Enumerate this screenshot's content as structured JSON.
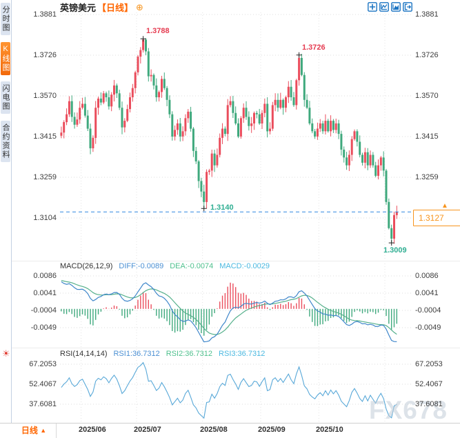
{
  "header": {
    "symbol": "英镑美元",
    "period_tag": "【日线】",
    "add_icon_glyph": "⊕"
  },
  "sidebar": {
    "items": [
      {
        "label": "分时图",
        "active": false
      },
      {
        "label": "K线图",
        "active": true
      },
      {
        "label": "闪电图",
        "active": false
      },
      {
        "label": "合约资料",
        "active": false
      }
    ]
  },
  "toolbar": {
    "icons": [
      "crosshair-icon",
      "line-chart-icon",
      "area-chart-icon",
      "exit-chart-icon"
    ]
  },
  "icons": {
    "dropdown_up": "▲",
    "sun": "☀",
    "price_arrow": "▲"
  },
  "colors": {
    "up": "#ea4d5c",
    "down": "#3fa97d",
    "diff_line": "#3e86ca",
    "dea_line": "#55b08b",
    "rsi_line": "#58a8d8",
    "dashed_line": "#2f86e0",
    "accent_orange": "#f7941d",
    "marker_high": "#e53b50",
    "marker_low": "#2fae92",
    "grid": "#dedede",
    "vgrid": "#e3e3e3"
  },
  "main_chart": {
    "left_axis": [
      "1.3881",
      "1.3726",
      "1.3570",
      "1.3415",
      "1.3259",
      "1.3104"
    ],
    "left_axis_values": [
      1.3881,
      1.3726,
      1.357,
      1.3415,
      1.3259,
      1.3104
    ],
    "right_axis": [
      "1.3881",
      "1.3726",
      "1.3570",
      "1.3415",
      "1.3259"
    ],
    "current_price": "1.3127",
    "current_price_value": 1.3127,
    "markers": [
      {
        "index": 31,
        "price": 1.3788,
        "label": "1.3788",
        "color": "#e53b50",
        "placement": "above"
      },
      {
        "index": 54,
        "price": 1.314,
        "label": "1.3140",
        "color": "#2fae92",
        "placement": "right"
      },
      {
        "index": 90,
        "price": 1.3726,
        "label": "1.3726",
        "color": "#e53b50",
        "placement": "above"
      },
      {
        "index": 125,
        "price": 1.3009,
        "label": "1.3009",
        "color": "#2fae92",
        "placement": "below"
      }
    ]
  },
  "macd": {
    "header": "MACD(26,12,9)",
    "diff_label": "DIFF:-0.0089",
    "dea_label": "DEA:-0.0074",
    "macd_label": "MACD:-0.0029",
    "axis": [
      "0.0086",
      "0.0041",
      "-0.0004",
      "-0.0049"
    ],
    "axis_values": [
      0.0086,
      0.0041,
      -0.0004,
      -0.0049
    ]
  },
  "rsi": {
    "header": "RSI(14,14,14)",
    "rsi1_label": "RSI1:36.7312",
    "rsi2_label": "RSI2:36.7312",
    "rsi3_label": "RSI3:36.7312",
    "axis": [
      "67.2053",
      "52.4067",
      "37.6081"
    ],
    "axis_values": [
      67.2053,
      52.4067,
      37.6081
    ]
  },
  "bottom_bar": {
    "period": "日线",
    "dates": [
      "2025/06",
      "2025/07",
      "2025/08",
      "2025/09",
      "2025/10"
    ]
  },
  "watermark": "FX678",
  "chart_data": {
    "type": "candlestick",
    "title": "英镑美元 日线 (GBP/USD daily)",
    "x_axis": {
      "labels": [
        "2025/06",
        "2025/07",
        "2025/08",
        "2025/09",
        "2025/10"
      ],
      "month_start_indices": [
        8,
        29,
        54,
        76,
        98,
        123
      ]
    },
    "y_axis": {
      "ticks": [
        1.3881,
        1.3726,
        1.357,
        1.3415,
        1.3259,
        1.3104
      ]
    },
    "key_points": {
      "high_jul": 1.3788,
      "low_aug": 1.314,
      "high_sep": 1.3726,
      "low_nov": 1.3009,
      "last": 1.3127
    },
    "closes": [
      1.343,
      1.347,
      1.35,
      1.355,
      1.349,
      1.346,
      1.348,
      1.3525,
      1.354,
      1.3495,
      1.3445,
      1.337,
      1.341,
      1.3525,
      1.356,
      1.3545,
      1.358,
      1.3565,
      1.353,
      1.3575,
      1.361,
      1.358,
      1.3525,
      1.345,
      1.3475,
      1.352,
      1.3565,
      1.36,
      1.366,
      1.372,
      1.3745,
      1.3785,
      1.374,
      1.3645,
      1.365,
      1.361,
      1.3565,
      1.3585,
      1.3635,
      1.36,
      1.3555,
      1.35,
      1.3415,
      1.344,
      1.3465,
      1.3415,
      1.3435,
      1.3485,
      1.351,
      1.3445,
      1.336,
      1.332,
      1.3245,
      1.3205,
      1.3165,
      1.328,
      1.3285,
      1.335,
      1.3305,
      1.3345,
      1.341,
      1.3445,
      1.3425,
      1.3535,
      1.355,
      1.3505,
      1.3465,
      1.3415,
      1.3485,
      1.3525,
      1.349,
      1.3455,
      1.3465,
      1.3505,
      1.35,
      1.3465,
      1.3505,
      1.354,
      1.3435,
      1.3445,
      1.3535,
      1.3555,
      1.3525,
      1.3555,
      1.3525,
      1.3565,
      1.3605,
      1.3565,
      1.3535,
      1.363,
      1.3715,
      1.365,
      1.3555,
      1.3525,
      1.3465,
      1.3435,
      1.3415,
      1.3445,
      1.3465,
      1.3435,
      1.3475,
      1.3435,
      1.3475,
      1.344,
      1.3465,
      1.3425,
      1.3365,
      1.3335,
      1.3305,
      1.3345,
      1.3405,
      1.3435,
      1.3395,
      1.3345,
      1.3315,
      1.3355,
      1.3305,
      1.3345,
      1.3305,
      1.3265,
      1.3305,
      1.3335,
      1.3285,
      1.3165,
      1.3065,
      1.3025,
      1.3115,
      1.3127
    ],
    "macd_series_note": "DIFF=EMA12-EMA26, DEA=EMA9(DIFF), hist=(DIFF-DEA)*2; last DIFF -0.0089, DEA -0.0074, MACD -0.0029",
    "rsi_series_note": "RSI(14) of closes; last value 36.7312"
  }
}
